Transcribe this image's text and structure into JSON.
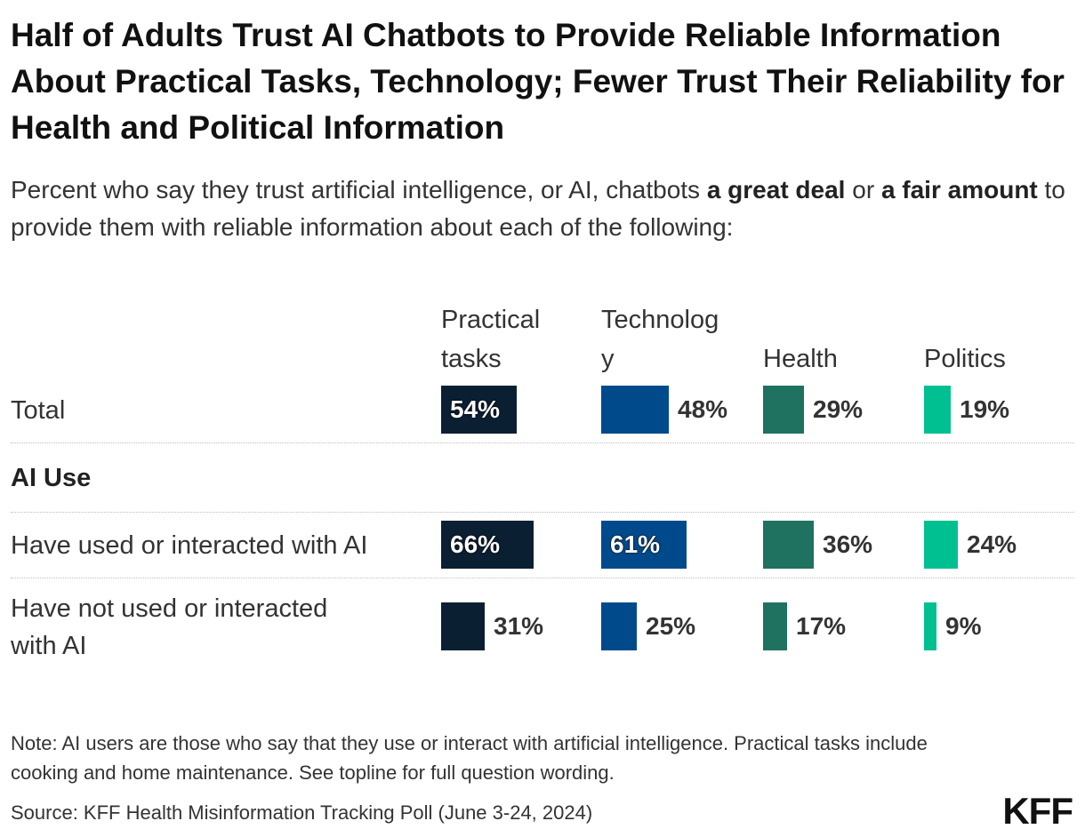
{
  "chart_data": {
    "type": "bar",
    "title": "Half of Adults Trust AI Chatbots to Provide Reliable Information About Practical Tasks, Technology; Fewer Trust Their Reliability for Health and Political Information",
    "subtitle": {
      "part1": "Percent who say they trust artificial intelligence, or AI, chatbots ",
      "bold1": "a great deal",
      "part2": " or ",
      "bold2": "a fair amount",
      "part3": " to provide them with reliable information about each of the following:"
    },
    "columns": [
      {
        "label_lines": [
          "Practical",
          "tasks"
        ],
        "color": "#0b1f33"
      },
      {
        "label_lines": [
          "Technolog",
          "y"
        ],
        "color": "#004a8c"
      },
      {
        "label_lines": [
          "Health"
        ],
        "color": "#1f7260"
      },
      {
        "label_lines": [
          "Politics"
        ],
        "color": "#00c092"
      }
    ],
    "group_heading": "AI Use",
    "rows": [
      {
        "label_lines": [
          "Total"
        ],
        "values": [
          54,
          48,
          29,
          19
        ],
        "labels": [
          "54%",
          "48%",
          "29%",
          "19%"
        ]
      },
      {
        "label_lines": [
          "Have used or interacted with AI"
        ],
        "values": [
          66,
          61,
          36,
          24
        ],
        "labels": [
          "66%",
          "61%",
          "36%",
          "24%"
        ]
      },
      {
        "label_lines": [
          "Have not used or interacted",
          "with AI"
        ],
        "values": [
          31,
          25,
          17,
          9
        ],
        "labels": [
          "31%",
          "25%",
          "17%",
          "9%"
        ]
      }
    ],
    "xlim": [
      0,
      100
    ]
  },
  "note": "Note: AI users are those who say that they use or interact with artificial intelligence. Practical tasks include cooking and home maintenance. See topline for full question wording.",
  "source": "Source: KFF Health Misinformation Tracking Poll (June 3-24, 2024)",
  "logo": "KFF"
}
